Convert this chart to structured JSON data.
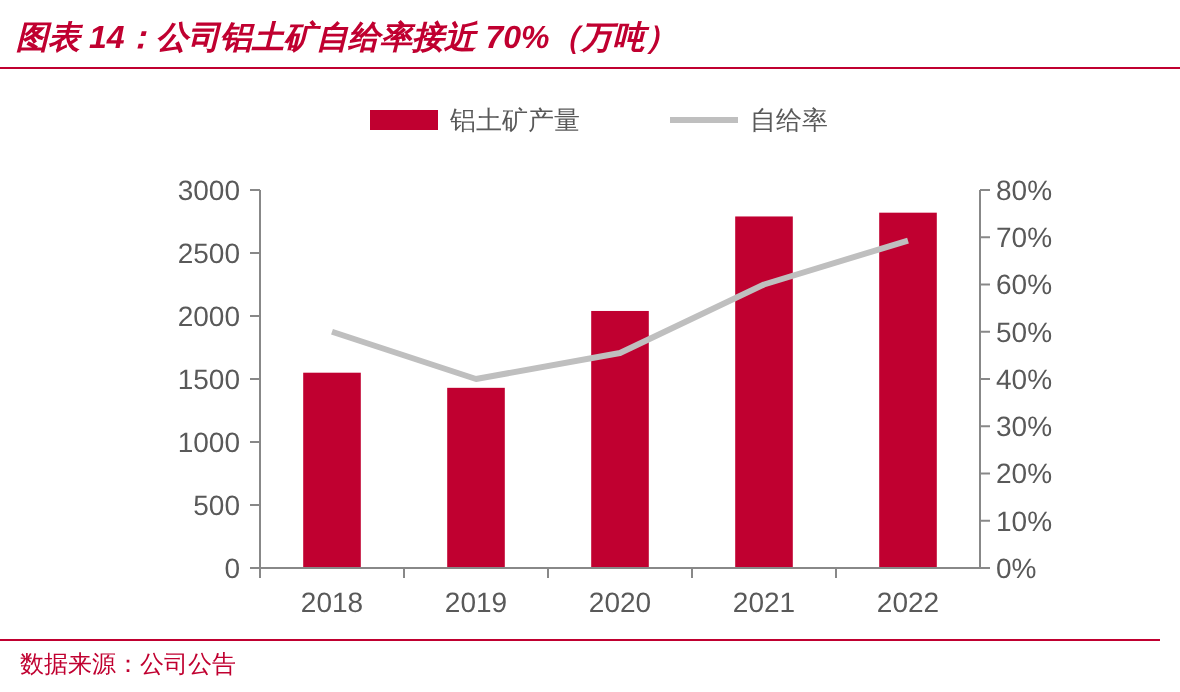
{
  "chart_data": {
    "type": "bar",
    "title": "图表 14：公司铝土矿自给率接近 70%（万吨）",
    "categories": [
      "2018",
      "2019",
      "2020",
      "2021",
      "2022"
    ],
    "series": [
      {
        "name": "铝土矿产量",
        "color": "#c00030",
        "values": [
          1550,
          1430,
          2040,
          2790,
          2820
        ]
      },
      {
        "name": "自给率",
        "type": "line",
        "axis": "y2",
        "color": "#bfbfbf",
        "values": [
          50,
          40,
          45.5,
          60,
          69.3
        ]
      }
    ],
    "ylim": [
      0,
      3000
    ],
    "yticks": [
      0,
      500,
      1000,
      1500,
      2000,
      2500,
      3000
    ],
    "y2lim": [
      0,
      80
    ],
    "y2ticks": [
      {
        "value": 0,
        "label": "0%"
      },
      {
        "value": 10,
        "label": "10%"
      },
      {
        "value": 20,
        "label": "20%"
      },
      {
        "value": 30,
        "label": "30%"
      },
      {
        "value": 40,
        "label": "40%"
      },
      {
        "value": 50,
        "label": "50%"
      },
      {
        "value": 60,
        "label": "60%"
      },
      {
        "value": 70,
        "label": "70%"
      },
      {
        "value": 80,
        "label": "80%"
      }
    ],
    "legend": "top",
    "grid": false,
    "marker": "none",
    "line_style": "solid",
    "annotations": [
      "数据来源：公司公告"
    ]
  }
}
